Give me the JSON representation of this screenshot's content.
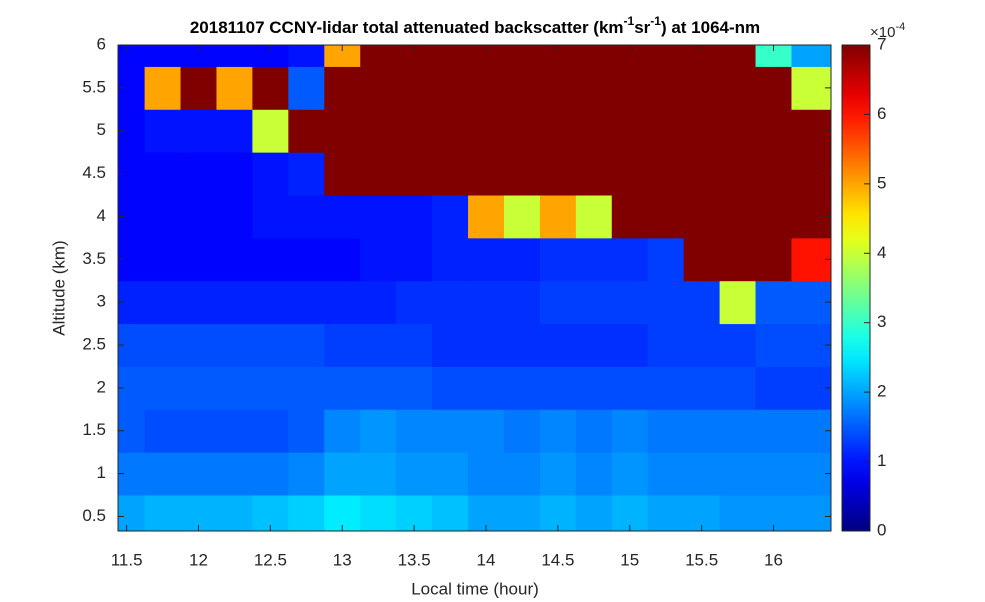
{
  "chart_data": {
    "type": "heatmap",
    "title_parts": [
      "20181107 CCNY-lidar total attenuated backscatter (km",
      "-1",
      "sr",
      "-1",
      ") at 1064-nm"
    ],
    "xlabel": "Local time (hour)",
    "ylabel": "Altitude (km)",
    "x": [
      11.5,
      11.75,
      12,
      12.25,
      12.5,
      12.75,
      13,
      13.25,
      13.5,
      13.75,
      14,
      14.25,
      14.5,
      14.75,
      15,
      15.25,
      15.5,
      15.75,
      16,
      16.25
    ],
    "y": [
      0.5,
      1,
      1.5,
      2,
      2.5,
      3,
      3.5,
      4,
      4.5,
      5,
      5.5,
      6
    ],
    "z": [
      [
        2.0,
        2.1,
        2.1,
        2.1,
        2.2,
        2.3,
        2.5,
        2.4,
        2.3,
        2.2,
        2.0,
        2.0,
        2.1,
        2.0,
        2.1,
        2.0,
        2.0,
        1.9,
        1.9,
        1.9
      ],
      [
        1.7,
        1.7,
        1.7,
        1.7,
        1.7,
        1.8,
        2.0,
        2.0,
        1.9,
        1.9,
        1.8,
        1.8,
        1.9,
        1.8,
        1.9,
        1.8,
        1.8,
        1.8,
        1.8,
        1.8
      ],
      [
        1.5,
        1.4,
        1.4,
        1.4,
        1.4,
        1.5,
        1.8,
        1.9,
        1.8,
        1.8,
        1.8,
        1.7,
        1.8,
        1.7,
        1.8,
        1.7,
        1.7,
        1.7,
        1.7,
        1.7
      ],
      [
        1.5,
        1.5,
        1.5,
        1.5,
        1.5,
        1.5,
        1.5,
        1.5,
        1.5,
        1.4,
        1.4,
        1.4,
        1.4,
        1.4,
        1.4,
        1.4,
        1.4,
        1.4,
        1.3,
        1.3
      ],
      [
        1.4,
        1.4,
        1.4,
        1.4,
        1.4,
        1.4,
        1.3,
        1.3,
        1.3,
        1.2,
        1.2,
        1.2,
        1.2,
        1.2,
        1.2,
        1.3,
        1.3,
        1.3,
        1.4,
        1.4
      ],
      [
        1.1,
        1.1,
        1.1,
        1.1,
        1.1,
        1.1,
        1.1,
        1.1,
        1.2,
        1.2,
        1.2,
        1.2,
        1.3,
        1.3,
        1.3,
        1.3,
        1.3,
        4.0,
        1.5,
        1.5
      ],
      [
        0.9,
        0.9,
        0.9,
        0.9,
        0.9,
        0.9,
        0.9,
        1.0,
        1.0,
        1.1,
        1.1,
        1.1,
        1.2,
        1.2,
        1.2,
        1.3,
        7,
        7,
        7,
        6
      ],
      [
        0.9,
        0.9,
        0.9,
        0.9,
        1.0,
        1.0,
        1.0,
        1.0,
        1.0,
        1.1,
        5,
        4,
        5,
        4,
        7,
        7,
        7,
        7,
        7,
        7
      ],
      [
        0.9,
        0.9,
        0.9,
        0.9,
        1.0,
        1.1,
        7,
        7,
        7,
        7,
        7,
        7,
        7,
        7,
        7,
        7,
        7,
        7,
        7,
        7
      ],
      [
        0.9,
        1.0,
        1.0,
        1.0,
        4,
        7,
        7,
        7,
        7,
        7,
        7,
        7,
        7,
        7,
        7,
        7,
        7,
        7,
        7,
        7
      ],
      [
        0.9,
        5,
        7,
        5,
        7,
        1.5,
        7,
        7,
        7,
        7,
        7,
        7,
        7,
        7,
        7,
        7,
        7,
        7,
        7,
        4
      ],
      [
        0.9,
        0.9,
        0.9,
        0.9,
        0.9,
        1.0,
        5,
        7,
        7,
        7,
        7,
        7,
        7,
        7,
        7,
        7,
        7,
        7,
        3,
        2
      ]
    ],
    "xlim": [
      11.44,
      16.4
    ],
    "ylim": [
      0.33,
      6
    ],
    "xticks": [
      11.5,
      12,
      12.5,
      13,
      13.5,
      14,
      14.5,
      15,
      15.5,
      16
    ],
    "yticks": [
      0.5,
      1,
      1.5,
      2,
      2.5,
      3,
      3.5,
      4,
      4.5,
      5,
      5.5,
      6
    ],
    "colormap": "jet",
    "clim": [
      0,
      7
    ],
    "cticks": [
      0,
      1,
      2,
      3,
      4,
      5,
      6,
      7
    ],
    "colorbar_multiplier": "×10",
    "colorbar_exponent": "-4"
  }
}
